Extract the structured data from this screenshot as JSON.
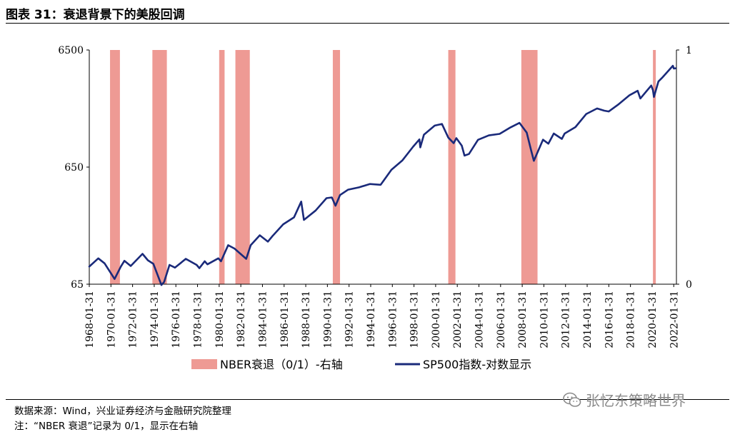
{
  "header": {
    "title": "图表 31：衰退背景下的美股回调"
  },
  "footer": {
    "source": "数据来源：Wind，兴业证券经济与金融研究院整理",
    "note": "注：“NBER 衰退”记录为 0/1，显示在右轴"
  },
  "watermark": {
    "text": "张忆东策略世界",
    "icon": "wechat-icon"
  },
  "chart_data": {
    "type": "line",
    "title": "",
    "y_left": {
      "scale": "log",
      "ticks": [
        65,
        650,
        6500
      ],
      "ylim": [
        65,
        6500
      ]
    },
    "y_right": {
      "ticks": [
        0,
        1
      ],
      "ylim": [
        0,
        1
      ]
    },
    "x_ticks": [
      "1968-01-31",
      "1970-01-31",
      "1972-01-31",
      "1974-01-31",
      "1976-01-31",
      "1978-01-31",
      "1980-01-31",
      "1982-01-31",
      "1984-01-31",
      "1986-01-31",
      "1988-01-31",
      "1990-01-31",
      "1992-01-31",
      "1994-01-31",
      "1996-01-31",
      "1998-01-31",
      "2000-01-31",
      "2002-01-31",
      "2004-01-31",
      "2006-01-31",
      "2008-01-31",
      "2010-01-31",
      "2012-01-31",
      "2014-01-31",
      "2016-01-31",
      "2018-01-31",
      "2020-01-31",
      "2022-01-31"
    ],
    "x_range": [
      "1968-01-31",
      "2022-04-30"
    ],
    "series": [
      {
        "name": "NBER衰退（0/1）-右轴",
        "type": "bar-band",
        "axis": "right",
        "color": "#ee9a94",
        "periods": [
          [
            "1969-12-31",
            "1970-11-30"
          ],
          [
            "1973-11-30",
            "1975-03-31"
          ],
          [
            "1980-01-31",
            "1980-07-31"
          ],
          [
            "1981-07-31",
            "1982-11-30"
          ],
          [
            "1990-07-31",
            "1991-03-31"
          ],
          [
            "2001-03-31",
            "2001-11-30"
          ],
          [
            "2007-12-31",
            "2009-06-30"
          ],
          [
            "2020-02-29",
            "2020-04-30"
          ]
        ]
      },
      {
        "name": "SP500指数-对数显示",
        "type": "line",
        "axis": "left",
        "color": "#1a2a7a",
        "points": [
          [
            "1968-01-31",
            92
          ],
          [
            "1968-11-30",
            108
          ],
          [
            "1969-06-30",
            98
          ],
          [
            "1970-05-31",
            72
          ],
          [
            "1970-12-31",
            92
          ],
          [
            "1971-04-30",
            103
          ],
          [
            "1971-11-30",
            93
          ],
          [
            "1972-12-31",
            118
          ],
          [
            "1973-06-30",
            104
          ],
          [
            "1973-12-31",
            97
          ],
          [
            "1974-09-30",
            64
          ],
          [
            "1974-12-31",
            68
          ],
          [
            "1975-06-30",
            95
          ],
          [
            "1975-12-31",
            90
          ],
          [
            "1976-12-31",
            107
          ],
          [
            "1977-12-31",
            95
          ],
          [
            "1978-03-31",
            89
          ],
          [
            "1978-09-30",
            102
          ],
          [
            "1978-12-31",
            96
          ],
          [
            "1979-12-31",
            108
          ],
          [
            "1980-03-31",
            102
          ],
          [
            "1980-11-30",
            140
          ],
          [
            "1981-06-30",
            131
          ],
          [
            "1982-07-31",
            107
          ],
          [
            "1982-12-31",
            140
          ],
          [
            "1983-10-31",
            170
          ],
          [
            "1984-07-31",
            150
          ],
          [
            "1984-12-31",
            167
          ],
          [
            "1985-12-31",
            211
          ],
          [
            "1986-12-31",
            242
          ],
          [
            "1987-08-31",
            330
          ],
          [
            "1987-11-30",
            230
          ],
          [
            "1988-12-31",
            277
          ],
          [
            "1989-12-31",
            353
          ],
          [
            "1990-06-30",
            358
          ],
          [
            "1990-10-31",
            304
          ],
          [
            "1991-03-31",
            375
          ],
          [
            "1991-12-31",
            417
          ],
          [
            "1992-12-31",
            436
          ],
          [
            "1993-12-31",
            466
          ],
          [
            "1994-12-31",
            459
          ],
          [
            "1995-12-31",
            616
          ],
          [
            "1996-12-31",
            740
          ],
          [
            "1997-12-31",
            970
          ],
          [
            "1998-07-31",
            1120
          ],
          [
            "1998-08-31",
            957
          ],
          [
            "1998-12-31",
            1229
          ],
          [
            "1999-12-31",
            1469
          ],
          [
            "2000-08-31",
            1517
          ],
          [
            "2001-03-31",
            1160
          ],
          [
            "2001-09-30",
            1040
          ],
          [
            "2001-12-31",
            1148
          ],
          [
            "2002-06-30",
            990
          ],
          [
            "2002-09-30",
            815
          ],
          [
            "2003-02-28",
            841
          ],
          [
            "2003-12-31",
            1112
          ],
          [
            "2004-12-31",
            1212
          ],
          [
            "2005-12-31",
            1248
          ],
          [
            "2006-12-31",
            1418
          ],
          [
            "2007-10-31",
            1549
          ],
          [
            "2008-06-30",
            1280
          ],
          [
            "2008-11-30",
            896
          ],
          [
            "2009-02-28",
            735
          ],
          [
            "2009-12-31",
            1115
          ],
          [
            "2010-06-30",
            1030
          ],
          [
            "2010-12-31",
            1258
          ],
          [
            "2011-09-30",
            1131
          ],
          [
            "2011-12-31",
            1258
          ],
          [
            "2012-12-31",
            1426
          ],
          [
            "2013-12-31",
            1848
          ],
          [
            "2014-12-31",
            2059
          ],
          [
            "2015-08-31",
            1972
          ],
          [
            "2016-01-31",
            1940
          ],
          [
            "2016-12-31",
            2239
          ],
          [
            "2017-12-31",
            2674
          ],
          [
            "2018-09-30",
            2914
          ],
          [
            "2018-12-31",
            2507
          ],
          [
            "2019-12-31",
            3231
          ],
          [
            "2020-02-29",
            2954
          ],
          [
            "2020-03-31",
            2585
          ],
          [
            "2020-08-31",
            3500
          ],
          [
            "2020-12-31",
            3756
          ],
          [
            "2021-12-31",
            4766
          ],
          [
            "2022-01-31",
            4516
          ],
          [
            "2022-03-31",
            4530
          ]
        ]
      }
    ],
    "legend": {
      "placement": "bottom"
    }
  }
}
